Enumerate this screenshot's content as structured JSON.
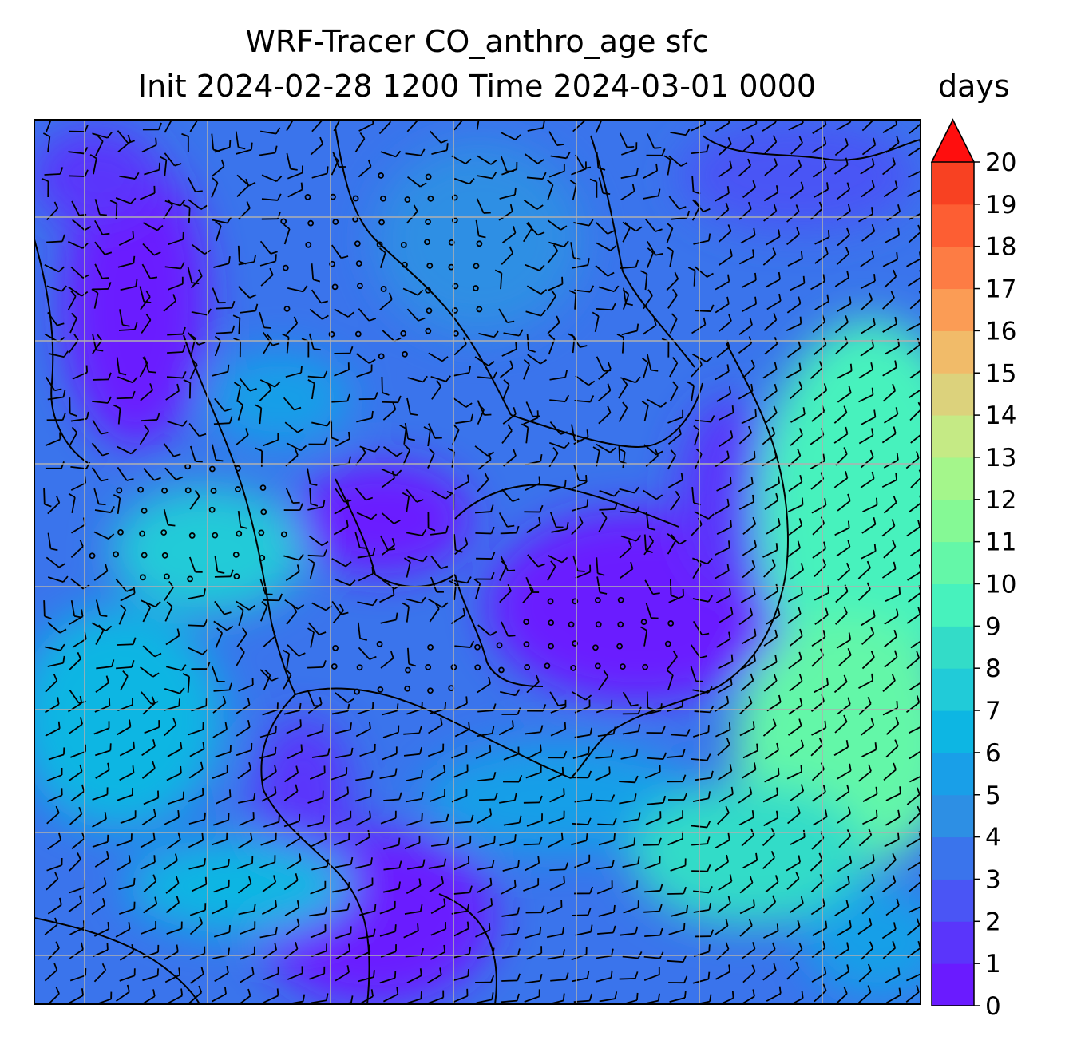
{
  "title": {
    "line1": "WRF-Tracer CO_anthro_age sfc",
    "line2": "Init 2024-02-28 1200 Time 2024-03-01 0000"
  },
  "colorbar": {
    "units": "days",
    "min": 0,
    "max": 20,
    "step": 1,
    "extend": "max",
    "tick_labels": [
      "0",
      "1",
      "2",
      "3",
      "4",
      "5",
      "6",
      "7",
      "8",
      "9",
      "10",
      "11",
      "12",
      "13",
      "14",
      "15",
      "16",
      "17",
      "18",
      "19",
      "20"
    ],
    "colors": [
      "#6a1bff",
      "#5a35fb",
      "#4a55f5",
      "#3a74ec",
      "#2d8fe4",
      "#199fe8",
      "#0db6e3",
      "#21cbd8",
      "#33dcc8",
      "#47f2bd",
      "#64f7a8",
      "#85f995",
      "#a4f68b",
      "#c5ea85",
      "#dcd27c",
      "#f1bb69",
      "#fb9c55",
      "#fd7c44",
      "#fd5e33",
      "#f84122"
    ],
    "extend_color": "#ff0e0e"
  },
  "map": {
    "gridlines": "on",
    "coastlines": "on",
    "barbs": "on",
    "gridline_color": "#b0b0b0"
  }
}
